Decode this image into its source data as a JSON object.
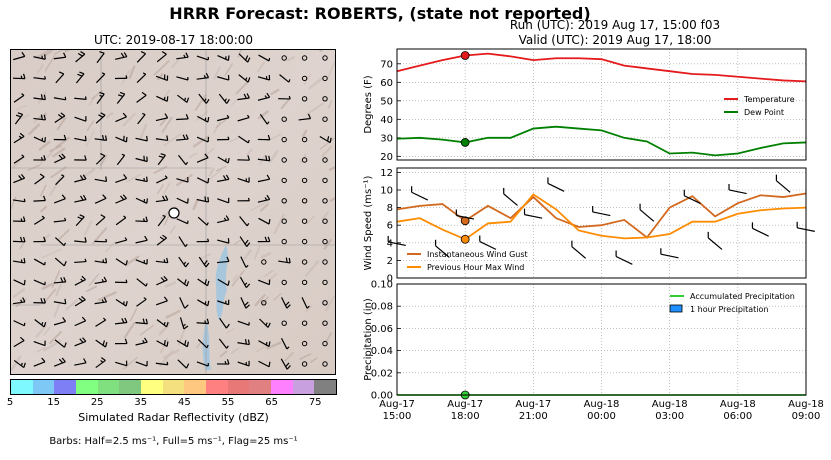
{
  "title": "HRRR Forecast: ROBERTS, (state not reported)",
  "map": {
    "title": "UTC: 2019-08-17 18:00:00",
    "colorbar": {
      "label": "Simulated Radar Reflectivity (dBZ)",
      "ticks": [
        "5",
        "15",
        "25",
        "35",
        "45",
        "55",
        "65",
        "75"
      ],
      "colors": [
        "#7df9ff",
        "#7ec8f5",
        "#7f7ff5",
        "#80ff80",
        "#80e080",
        "#80c880",
        "#ffff80",
        "#f5e080",
        "#ffc880",
        "#ff8080",
        "#e87878",
        "#e08080",
        "#ff80ff",
        "#c8a0e0",
        "#808080"
      ]
    },
    "barbs_note": "Barbs: Half=2.5 ms⁻¹, Full=5 ms⁻¹, Flag=25 ms⁻¹"
  },
  "run_label": "Run (UTC): 2019 Aug 17, 15:00 f03",
  "valid_label": "Valid (UTC): 2019 Aug 17, 18:00",
  "chart_data": [
    {
      "type": "line",
      "ylabel": "Degrees (F)",
      "ylim": [
        18,
        78
      ],
      "yticks": [
        "20",
        "30",
        "40",
        "50",
        "60",
        "70"
      ],
      "x": [
        0,
        1,
        2,
        3,
        4,
        5,
        6,
        7,
        8,
        9,
        10,
        11,
        12,
        13,
        14,
        15,
        16,
        17,
        18
      ],
      "series": [
        {
          "name": "Temperature",
          "color": "#e41a1c",
          "values": [
            66,
            69,
            72,
            74.5,
            75.5,
            74,
            72,
            73,
            73,
            72.5,
            69,
            67.5,
            66,
            64.5,
            64,
            63,
            62,
            61,
            60.5
          ]
        },
        {
          "name": "Dew Point",
          "color": "#008000",
          "values": [
            29.5,
            30,
            29,
            27.5,
            30,
            30,
            35,
            36,
            35,
            34,
            30,
            28,
            21.5,
            22,
            20.5,
            21.5,
            24.5,
            27,
            27.5
          ]
        }
      ],
      "legend": "right",
      "grid": true,
      "marker_x": 3
    },
    {
      "type": "line",
      "ylabel": "Wind Speed (ms⁻¹)",
      "ylim": [
        0,
        12.5
      ],
      "yticks": [
        "0",
        "2",
        "4",
        "6",
        "8",
        "10",
        "12"
      ],
      "x": [
        0,
        1,
        2,
        3,
        4,
        5,
        6,
        7,
        8,
        9,
        10,
        11,
        12,
        13,
        14,
        15,
        16,
        17,
        18
      ],
      "series": [
        {
          "name": "Instantaneous Wind Gust",
          "color": "#d2691e",
          "values": [
            7.8,
            8.2,
            8.4,
            6.5,
            8.2,
            6.8,
            9.2,
            6.8,
            5.8,
            6.0,
            6.6,
            4.6,
            8.0,
            9.3,
            7.0,
            8.5,
            9.4,
            9.2,
            9.6
          ]
        },
        {
          "name": "Previous Hour Max Wind",
          "color": "#ff8c00",
          "values": [
            6.4,
            6.8,
            5.5,
            4.4,
            6.2,
            6.4,
            9.5,
            7.8,
            5.4,
            4.8,
            4.5,
            4.6,
            5.0,
            6.4,
            6.4,
            7.3,
            7.7,
            7.9,
            8.0
          ]
        }
      ],
      "legend": "lower-left",
      "grid": true,
      "marker_x": 3
    },
    {
      "type": "line",
      "ylabel": "Precipitation (in)",
      "ylim": [
        0,
        0.1
      ],
      "yticks": [
        "0.00",
        "0.02",
        "0.04",
        "0.06",
        "0.08",
        "0.10"
      ],
      "x": [
        0,
        1,
        2,
        3,
        4,
        5,
        6,
        7,
        8,
        9,
        10,
        11,
        12,
        13,
        14,
        15,
        16,
        17,
        18
      ],
      "series": [
        {
          "name": "Accumulated Precipitation",
          "color": "#32cd32",
          "values": [
            0,
            0,
            0,
            0,
            0,
            0,
            0,
            0,
            0,
            0,
            0,
            0,
            0,
            0,
            0,
            0,
            0,
            0,
            0
          ]
        },
        {
          "name": "1 hour Precipitation",
          "color": "#1e90ff",
          "type": "bar",
          "values": [
            0,
            0,
            0,
            0,
            0,
            0,
            0,
            0,
            0,
            0,
            0,
            0,
            0,
            0,
            0,
            0,
            0,
            0,
            0
          ]
        }
      ],
      "legend": "top-right",
      "grid": true,
      "marker_x": 3
    }
  ],
  "xticks": [
    {
      "x": 0,
      "label": "Aug-17\n15:00"
    },
    {
      "x": 3,
      "label": "Aug-17\n18:00"
    },
    {
      "x": 6,
      "label": "Aug-17\n21:00"
    },
    {
      "x": 9,
      "label": "Aug-18\n00:00"
    },
    {
      "x": 12,
      "label": "Aug-18\n03:00"
    },
    {
      "x": 15,
      "label": "Aug-18\n06:00"
    },
    {
      "x": 18,
      "label": "Aug-18\n09:00"
    }
  ]
}
